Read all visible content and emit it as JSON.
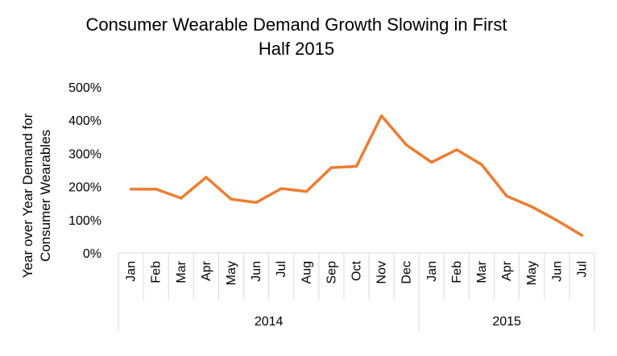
{
  "chart_data": {
    "type": "line",
    "title_lines": [
      "Consumer Wearable Demand Growth Slowing in First",
      "Half 2015"
    ],
    "ylabel_lines": [
      "Year over Year Demand for",
      "Consumer Wearables"
    ],
    "xlabel": "",
    "categories": [
      "Jan",
      "Feb",
      "Mar",
      "Apr",
      "May",
      "Jun",
      "Jul",
      "Aug",
      "Sep",
      "Oct",
      "Nov",
      "Dec",
      "Jan",
      "Feb",
      "Mar",
      "Apr",
      "May",
      "Jun",
      "Jul"
    ],
    "groups": [
      {
        "label": "2014",
        "count": 12
      },
      {
        "label": "2015",
        "count": 7
      }
    ],
    "series": [
      {
        "values": [
          192,
          192,
          165,
          228,
          162,
          152,
          194,
          185,
          257,
          261,
          413,
          325,
          273,
          311,
          266,
          171,
          139,
          98,
          53
        ]
      }
    ],
    "ylim": [
      0,
      500
    ],
    "yticks": [
      0,
      100,
      200,
      300,
      400,
      500
    ],
    "ytick_labels": [
      "0%",
      "100%",
      "200%",
      "300%",
      "400%",
      "500%"
    ],
    "grid": false,
    "legend": "none",
    "line_color": "#ED7D31",
    "axis_color": "#D9D9D9"
  }
}
